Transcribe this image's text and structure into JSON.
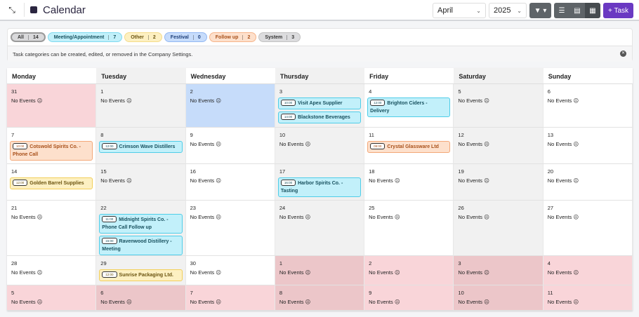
{
  "header": {
    "title": "Calendar",
    "month": "April",
    "year": "2025",
    "add_task": "+ Task"
  },
  "categories": [
    {
      "label": "All",
      "count": "14",
      "bg": "#d9d9db",
      "border": "#9a9a9a",
      "color": "#333"
    },
    {
      "label": "Meeting/Appointment",
      "count": "7",
      "bg": "#c2f0fa",
      "border": "#7fdaf0",
      "color": "#15505e"
    },
    {
      "label": "Other",
      "count": "2",
      "bg": "#fdf0c2",
      "border": "#f5dc8a",
      "color": "#6b5410"
    },
    {
      "label": "Festival",
      "count": "0",
      "bg": "#c7dcfb",
      "border": "#93b8f3",
      "color": "#1d3e78"
    },
    {
      "label": "Follow up",
      "count": "2",
      "bg": "#fde0cc",
      "border": "#f6b48a",
      "color": "#a8501a"
    },
    {
      "label": "System",
      "count": "3",
      "bg": "#dcdcde",
      "border": "#c2c2c2",
      "color": "#333"
    }
  ],
  "info": "Task categories can be created, edited, or removed in the Company Settings.",
  "no_events": "No Events ☹",
  "weekdays": [
    "Monday",
    "Tuesday",
    "Wednesday",
    "Thursday",
    "Friday",
    "Saturday",
    "Sunday"
  ],
  "event_styles": {
    "meeting": {
      "bg": "#c2f0fa",
      "border": "#4fcde8",
      "color": "#17505e"
    },
    "other": {
      "bg": "#fdf0c2",
      "border": "#f2cf5a",
      "color": "#6b5410"
    },
    "followup": {
      "bg": "#fde0cc",
      "border": "#f3a878",
      "color": "#a8501a"
    }
  },
  "weeks": [
    [
      {
        "d": "31",
        "s": "prev"
      },
      {
        "d": "1"
      },
      {
        "d": "2",
        "s": "today"
      },
      {
        "d": "3",
        "events": [
          {
            "time": "10:00",
            "title": "Visit Apex Supplier",
            "type": "meeting"
          },
          {
            "time": "14:00",
            "title": "Blackstone Beverages",
            "type": "meeting"
          }
        ]
      },
      {
        "d": "4",
        "events": [
          {
            "time": "12:00",
            "title": "Brighton Ciders - Delivery",
            "type": "meeting"
          }
        ]
      },
      {
        "d": "5"
      },
      {
        "d": "6"
      }
    ],
    [
      {
        "d": "7",
        "events": [
          {
            "time": "10:00",
            "title": "Cotswold Spirits Co. - Phone Call",
            "type": "followup"
          }
        ]
      },
      {
        "d": "8",
        "events": [
          {
            "time": "12:00",
            "title": "Crimson Wave Distillers",
            "type": "meeting"
          }
        ]
      },
      {
        "d": "9"
      },
      {
        "d": "10"
      },
      {
        "d": "11",
        "events": [
          {
            "time": "09:00",
            "title": "Crystal Glassware Ltd",
            "type": "followup"
          }
        ]
      },
      {
        "d": "12"
      },
      {
        "d": "13"
      }
    ],
    [
      {
        "d": "14",
        "events": [
          {
            "time": "12:00",
            "title": "Golden Barrel Supplies",
            "type": "other"
          }
        ]
      },
      {
        "d": "15"
      },
      {
        "d": "16"
      },
      {
        "d": "17",
        "events": [
          {
            "time": "16:00",
            "title": "Harbor Spirits Co. - Tasting",
            "type": "meeting"
          }
        ]
      },
      {
        "d": "18"
      },
      {
        "d": "19"
      },
      {
        "d": "20"
      }
    ],
    [
      {
        "d": "21"
      },
      {
        "d": "22",
        "events": [
          {
            "time": "11:00",
            "title": "Midnight Spirits Co. - Phone Call Follow up",
            "type": "meeting"
          },
          {
            "time": "15:00",
            "title": "Ravenwood Distillery - Meeting",
            "type": "meeting"
          }
        ]
      },
      {
        "d": "23"
      },
      {
        "d": "24"
      },
      {
        "d": "25"
      },
      {
        "d": "26"
      },
      {
        "d": "27"
      }
    ],
    [
      {
        "d": "28"
      },
      {
        "d": "29",
        "events": [
          {
            "time": "12:00",
            "title": "Sunrise Packaging Ltd.",
            "type": "other"
          }
        ]
      },
      {
        "d": "30"
      },
      {
        "d": "1",
        "s": "prev"
      },
      {
        "d": "2",
        "s": "prev"
      },
      {
        "d": "3",
        "s": "prev"
      },
      {
        "d": "4",
        "s": "prev"
      }
    ],
    [
      {
        "d": "5",
        "s": "prev"
      },
      {
        "d": "6",
        "s": "prev"
      },
      {
        "d": "7",
        "s": "prev"
      },
      {
        "d": "8",
        "s": "prev"
      },
      {
        "d": "9",
        "s": "prev"
      },
      {
        "d": "10",
        "s": "prev"
      },
      {
        "d": "11",
        "s": "prev"
      }
    ]
  ]
}
